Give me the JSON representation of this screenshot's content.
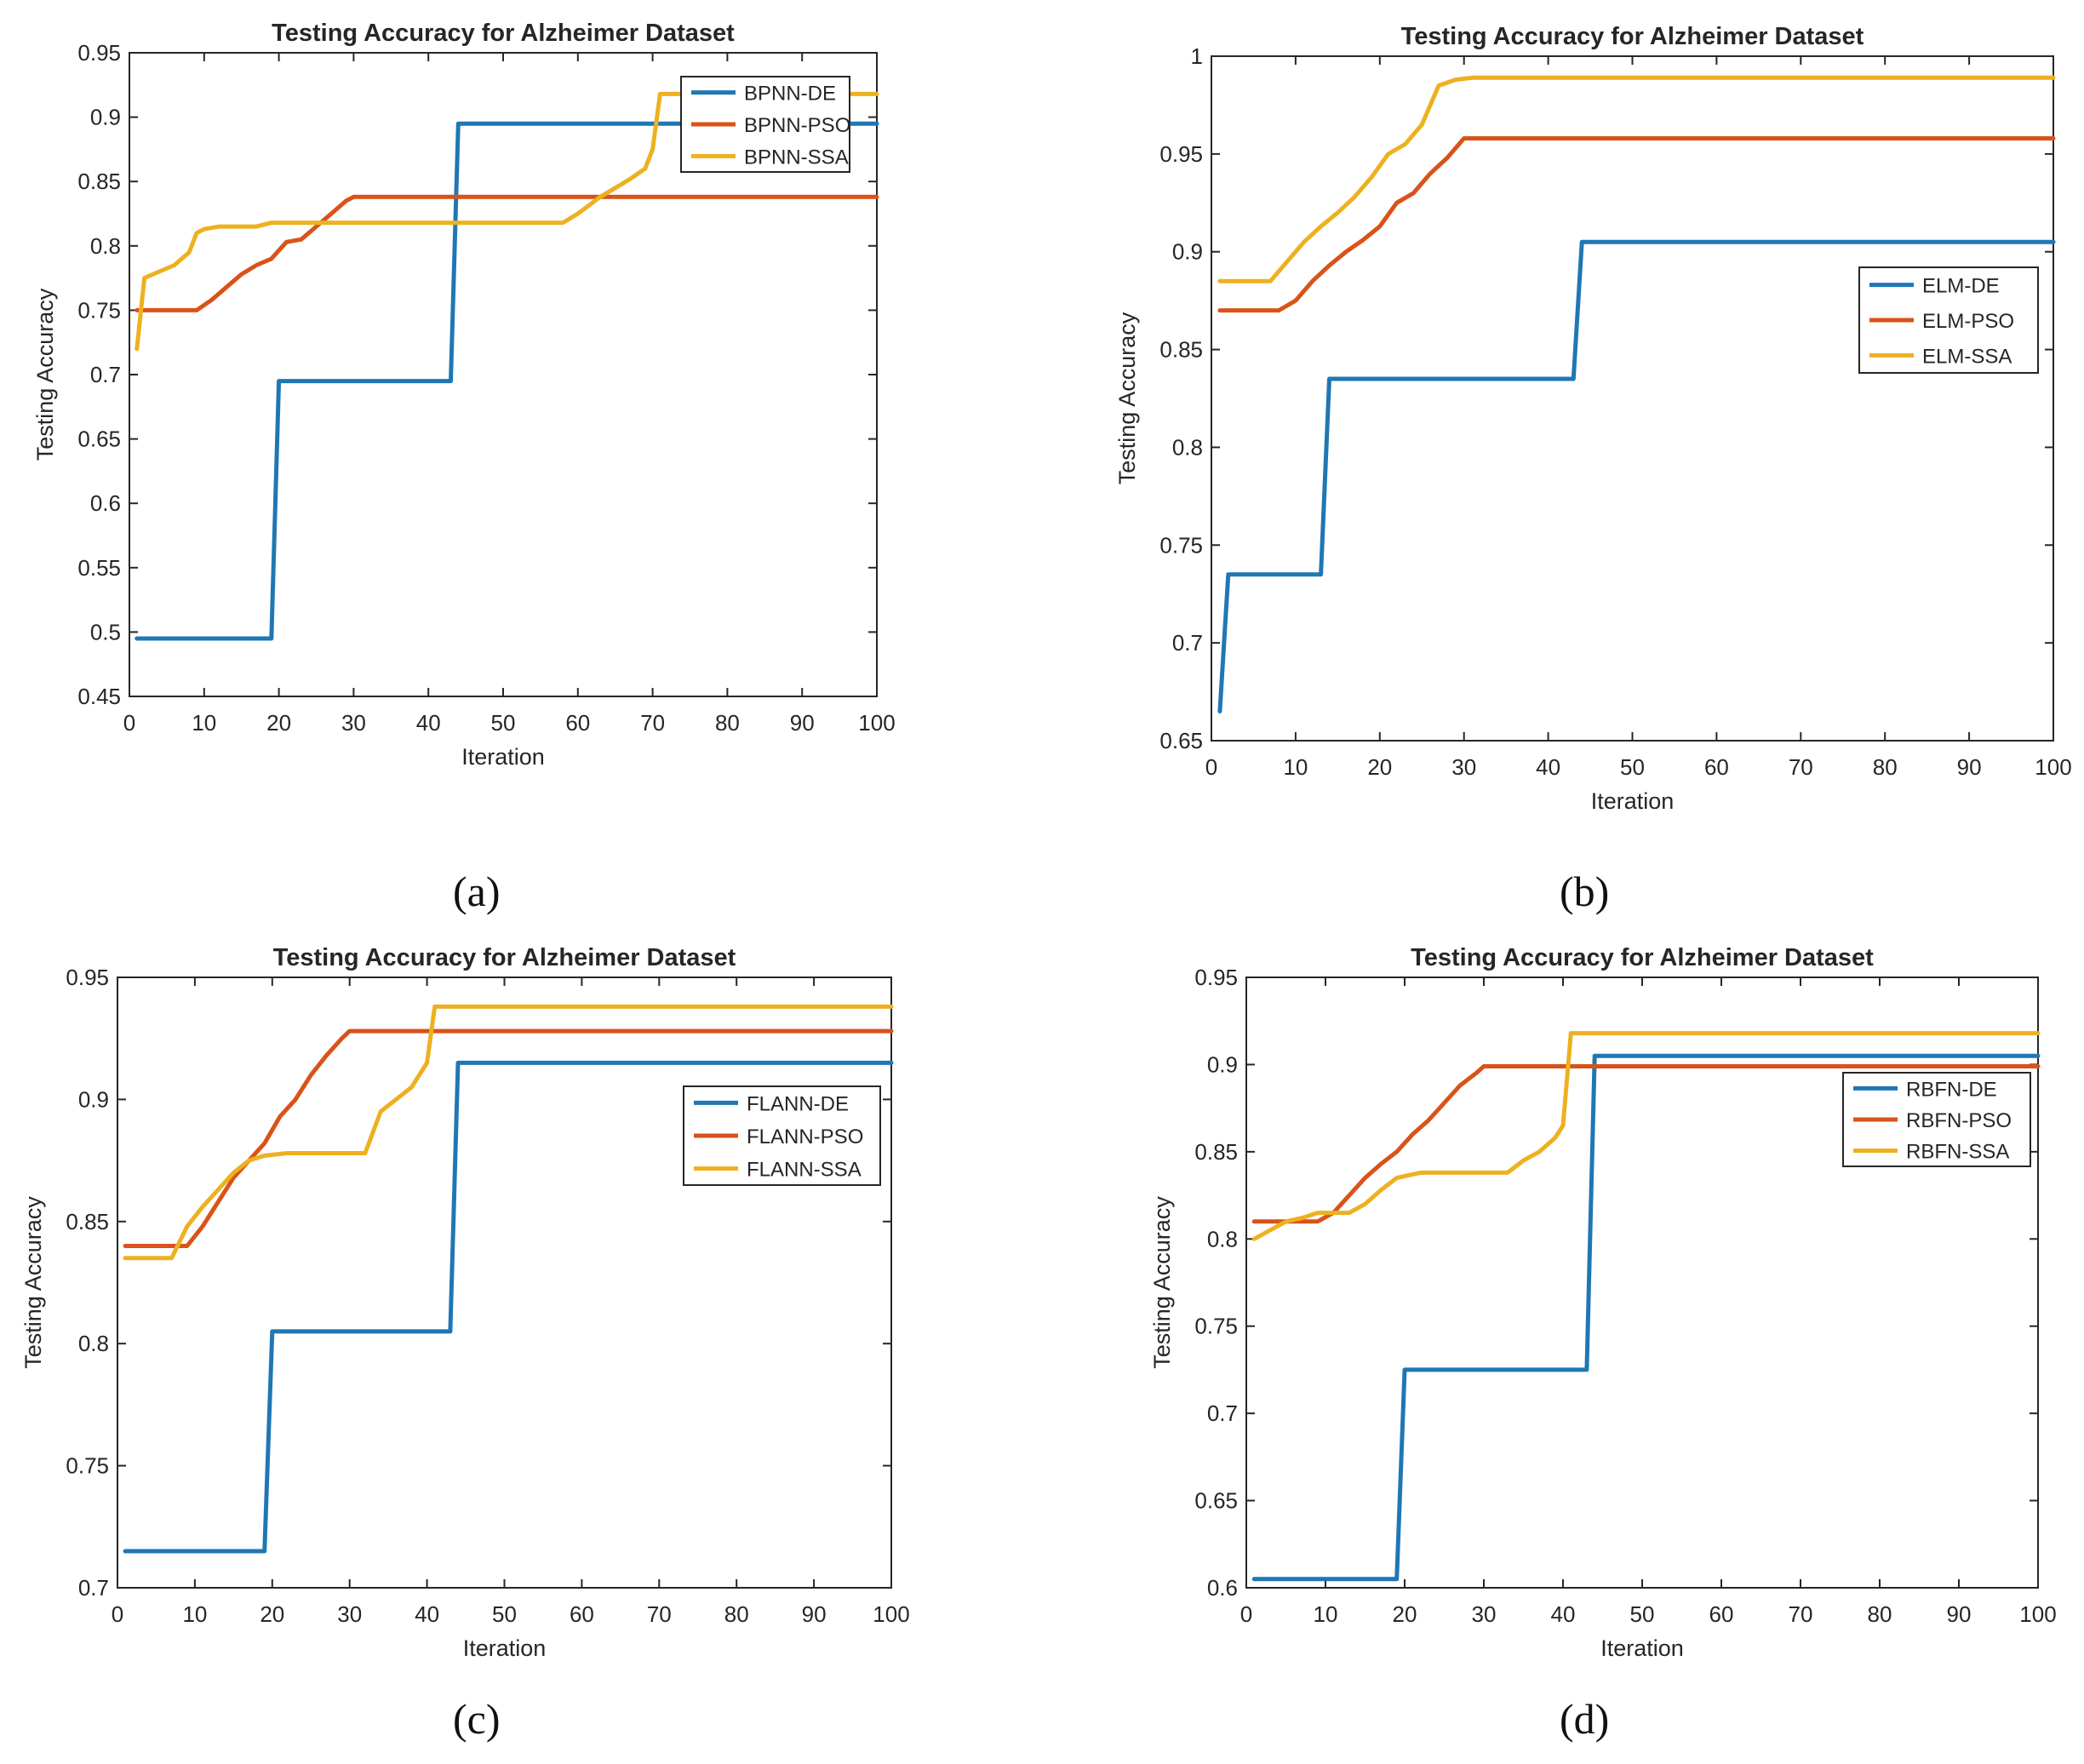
{
  "colors": {
    "de": "#1f77b4",
    "pso": "#d95319",
    "ssa": "#edb120",
    "axis": "#262626"
  },
  "captions": [
    "(a)",
    "(b)",
    "(c)",
    "(d)"
  ],
  "chart_data": [
    {
      "type": "line",
      "title": "Testing Accuracy for Alzheimer Dataset",
      "xlabel": "Iteration",
      "ylabel": "Testing Accuracy",
      "xlim": [
        0,
        100
      ],
      "ylim": [
        0.45,
        0.95
      ],
      "xticks": [
        0,
        10,
        20,
        30,
        40,
        50,
        60,
        70,
        80,
        90,
        100
      ],
      "xtick_labels": [
        "0",
        "10",
        "20",
        "30",
        "40",
        "50",
        "60",
        "70",
        "80",
        "90",
        "100"
      ],
      "yticks": [
        0.45,
        0.5,
        0.55,
        0.6,
        0.65,
        0.7,
        0.75,
        0.8,
        0.85,
        0.9,
        0.95
      ],
      "ytick_labels": [
        "0.45",
        "0.5",
        "0.55",
        "0.6",
        "0.65",
        "0.7",
        "0.75",
        "0.8",
        "0.85",
        "0.9",
        "0.95"
      ],
      "legend_position": "top-right",
      "series": [
        {
          "name": "BPNN-DE",
          "color_key": "de",
          "x": [
            1,
            19,
            20,
            43,
            44,
            100
          ],
          "y": [
            0.495,
            0.495,
            0.695,
            0.695,
            0.895,
            0.895
          ]
        },
        {
          "name": "BPNN-PSO",
          "color_key": "pso",
          "x": [
            1,
            9,
            11,
            13,
            15,
            17,
            19,
            21,
            23,
            25,
            27,
            29,
            30,
            100
          ],
          "y": [
            0.75,
            0.75,
            0.758,
            0.768,
            0.778,
            0.785,
            0.79,
            0.803,
            0.805,
            0.815,
            0.825,
            0.835,
            0.838,
            0.838
          ]
        },
        {
          "name": "BPNN-SSA",
          "color_key": "ssa",
          "x": [
            1,
            2,
            4,
            6,
            7,
            8,
            9,
            10,
            12,
            17,
            19,
            21,
            58,
            60,
            63,
            65,
            67,
            69,
            70,
            71,
            100
          ],
          "y": [
            0.72,
            0.775,
            0.78,
            0.785,
            0.79,
            0.795,
            0.81,
            0.813,
            0.815,
            0.815,
            0.818,
            0.818,
            0.818,
            0.825,
            0.838,
            0.845,
            0.852,
            0.86,
            0.875,
            0.918,
            0.918
          ]
        }
      ]
    },
    {
      "type": "line",
      "title": "Testing Accuracy for Alzheimer Dataset",
      "xlabel": "Iteration",
      "ylabel": "Testing Accuracy",
      "xlim": [
        0,
        100
      ],
      "ylim": [
        0.65,
        1.0
      ],
      "xticks": [
        0,
        10,
        20,
        30,
        40,
        50,
        60,
        70,
        80,
        90,
        100
      ],
      "xtick_labels": [
        "0",
        "10",
        "20",
        "30",
        "40",
        "50",
        "60",
        "70",
        "80",
        "90",
        "100"
      ],
      "yticks": [
        0.65,
        0.7,
        0.75,
        0.8,
        0.85,
        0.9,
        0.95,
        1.0
      ],
      "ytick_labels": [
        "0.65",
        "0.7",
        "0.75",
        "0.8",
        "0.85",
        "0.9",
        "0.95",
        "1"
      ],
      "legend_position": "right",
      "series": [
        {
          "name": "ELM-DE",
          "color_key": "de",
          "x": [
            1,
            2,
            13,
            14,
            43,
            44,
            100
          ],
          "y": [
            0.665,
            0.735,
            0.735,
            0.835,
            0.835,
            0.905,
            0.905
          ]
        },
        {
          "name": "ELM-PSO",
          "color_key": "pso",
          "x": [
            1,
            8,
            10,
            12,
            14,
            16,
            18,
            20,
            22,
            24,
            26,
            28,
            30,
            100
          ],
          "y": [
            0.87,
            0.87,
            0.875,
            0.885,
            0.893,
            0.9,
            0.906,
            0.913,
            0.925,
            0.93,
            0.94,
            0.948,
            0.958,
            0.958
          ]
        },
        {
          "name": "ELM-SSA",
          "color_key": "ssa",
          "x": [
            1,
            7,
            9,
            11,
            13,
            15,
            17,
            19,
            21,
            23,
            25,
            26,
            27,
            29,
            31,
            100
          ],
          "y": [
            0.885,
            0.885,
            0.895,
            0.905,
            0.913,
            0.92,
            0.928,
            0.938,
            0.95,
            0.955,
            0.965,
            0.975,
            0.985,
            0.988,
            0.989,
            0.989
          ]
        }
      ]
    },
    {
      "type": "line",
      "title": "Testing Accuracy for Alzheimer Dataset",
      "xlabel": "Iteration",
      "ylabel": "Testing Accuracy",
      "xlim": [
        0,
        100
      ],
      "ylim": [
        0.7,
        0.95
      ],
      "xticks": [
        0,
        10,
        20,
        30,
        40,
        50,
        60,
        70,
        80,
        90,
        100
      ],
      "xtick_labels": [
        "0",
        "10",
        "20",
        "30",
        "40",
        "50",
        "60",
        "70",
        "80",
        "90",
        "100"
      ],
      "yticks": [
        0.7,
        0.75,
        0.8,
        0.85,
        0.9,
        0.95
      ],
      "ytick_labels": [
        "0.7",
        "0.75",
        "0.8",
        "0.85",
        "0.9",
        "0.95"
      ],
      "legend_position": "right",
      "series": [
        {
          "name": "FLANN-DE",
          "color_key": "de",
          "x": [
            1,
            19,
            20,
            43,
            44,
            100
          ],
          "y": [
            0.715,
            0.715,
            0.805,
            0.805,
            0.915,
            0.915
          ]
        },
        {
          "name": "FLANN-PSO",
          "color_key": "pso",
          "x": [
            1,
            9,
            11,
            13,
            15,
            17,
            19,
            21,
            23,
            25,
            27,
            29,
            30,
            100
          ],
          "y": [
            0.84,
            0.84,
            0.848,
            0.858,
            0.868,
            0.875,
            0.882,
            0.893,
            0.9,
            0.91,
            0.918,
            0.925,
            0.928,
            0.928
          ]
        },
        {
          "name": "FLANN-SSA",
          "color_key": "ssa",
          "x": [
            1,
            7,
            9,
            11,
            13,
            15,
            17,
            19,
            22,
            26,
            32,
            34,
            36,
            38,
            40,
            41,
            100
          ],
          "y": [
            0.835,
            0.835,
            0.848,
            0.856,
            0.863,
            0.87,
            0.875,
            0.877,
            0.878,
            0.878,
            0.878,
            0.895,
            0.9,
            0.905,
            0.915,
            0.938,
            0.938
          ]
        }
      ]
    },
    {
      "type": "line",
      "title": "Testing Accuracy for Alzheimer Dataset",
      "xlabel": "Iteration",
      "ylabel": "Testing Accuracy",
      "xlim": [
        0,
        100
      ],
      "ylim": [
        0.6,
        0.95
      ],
      "xticks": [
        0,
        10,
        20,
        30,
        40,
        50,
        60,
        70,
        80,
        90,
        100
      ],
      "xtick_labels": [
        "0",
        "10",
        "20",
        "30",
        "40",
        "50",
        "60",
        "70",
        "80",
        "90",
        "100"
      ],
      "yticks": [
        0.6,
        0.65,
        0.7,
        0.75,
        0.8,
        0.85,
        0.9,
        0.95
      ],
      "ytick_labels": [
        "0.6",
        "0.65",
        "0.7",
        "0.75",
        "0.8",
        "0.85",
        "0.9",
        "0.95"
      ],
      "legend_position": "top-right",
      "series": [
        {
          "name": "RBFN-DE",
          "color_key": "de",
          "x": [
            1,
            19,
            20,
            43,
            44,
            100
          ],
          "y": [
            0.605,
            0.605,
            0.725,
            0.725,
            0.905,
            0.905
          ]
        },
        {
          "name": "RBFN-PSO",
          "color_key": "pso",
          "x": [
            1,
            9,
            11,
            13,
            15,
            17,
            19,
            21,
            23,
            25,
            27,
            29,
            30,
            100
          ],
          "y": [
            0.81,
            0.81,
            0.815,
            0.825,
            0.835,
            0.843,
            0.85,
            0.86,
            0.868,
            0.878,
            0.888,
            0.895,
            0.899,
            0.899
          ]
        },
        {
          "name": "RBFN-SSA",
          "color_key": "ssa",
          "x": [
            1,
            3,
            5,
            7,
            9,
            13,
            15,
            17,
            19,
            22,
            33,
            35,
            37,
            39,
            40,
            41,
            100
          ],
          "y": [
            0.8,
            0.805,
            0.81,
            0.812,
            0.815,
            0.815,
            0.82,
            0.828,
            0.835,
            0.838,
            0.838,
            0.845,
            0.85,
            0.858,
            0.865,
            0.918,
            0.918
          ]
        }
      ]
    }
  ]
}
